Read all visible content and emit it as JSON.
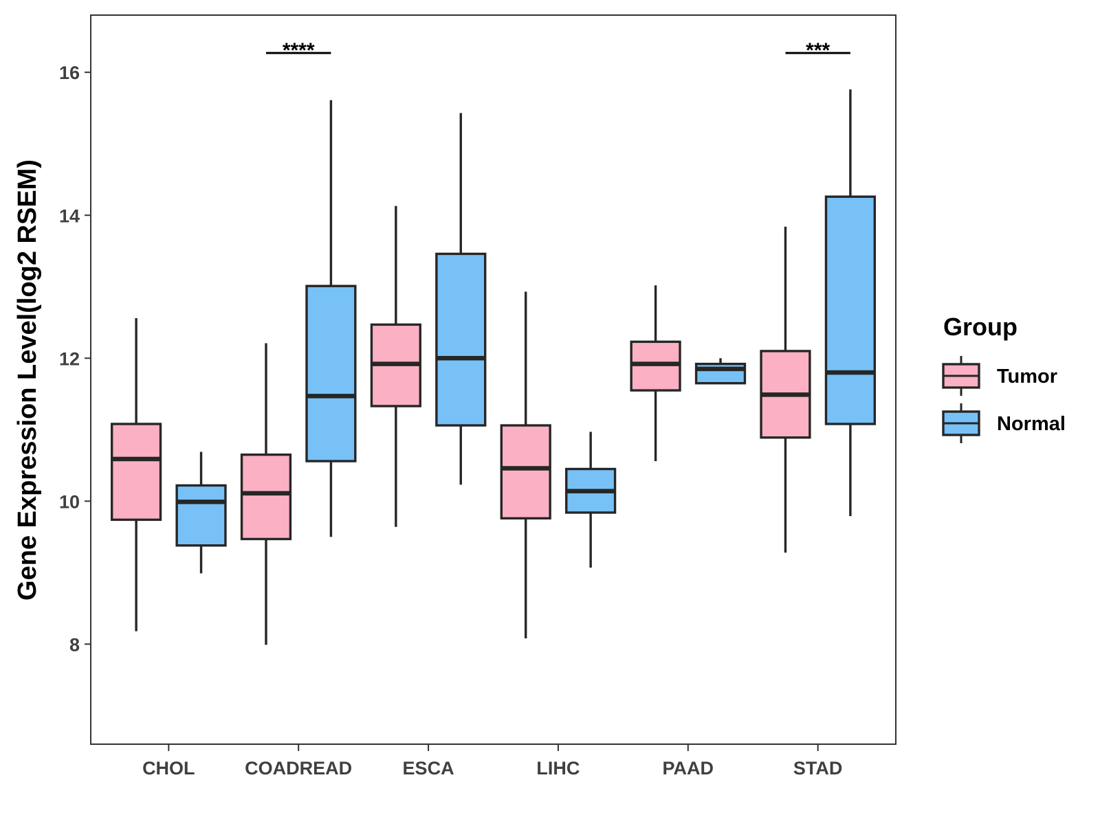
{
  "chart_data": {
    "type": "boxplot",
    "title": "",
    "xlabel": "",
    "ylabel": "Gene Expression Level(log2 RSEM)",
    "ylim": [
      6.6,
      16.8
    ],
    "yticks": [
      8,
      10,
      12,
      14,
      16
    ],
    "ytick_labels": [
      "8",
      "10",
      "12",
      "14",
      "16"
    ],
    "grid": false,
    "legend_position": "right",
    "legend_title": "Group",
    "categories": [
      "CHOL",
      "COADREAD",
      "ESCA",
      "LIHC",
      "PAAD",
      "STAD"
    ],
    "series": [
      {
        "name": "Tumor",
        "color": "#FBB1C3",
        "boxes": [
          {
            "whisker_low": 8.18,
            "q1": 9.74,
            "median": 10.59,
            "q3": 11.08,
            "whisker_high": 12.56
          },
          {
            "whisker_low": 7.99,
            "q1": 9.47,
            "median": 10.11,
            "q3": 10.65,
            "whisker_high": 12.21
          },
          {
            "whisker_low": 9.64,
            "q1": 11.33,
            "median": 11.92,
            "q3": 12.47,
            "whisker_high": 14.13
          },
          {
            "whisker_low": 8.08,
            "q1": 9.76,
            "median": 10.46,
            "q3": 11.06,
            "whisker_high": 12.93
          },
          {
            "whisker_low": 10.56,
            "q1": 11.55,
            "median": 11.92,
            "q3": 12.23,
            "whisker_high": 13.02
          },
          {
            "whisker_low": 9.28,
            "q1": 10.89,
            "median": 11.49,
            "q3": 12.1,
            "whisker_high": 13.84
          }
        ]
      },
      {
        "name": "Normal",
        "color": "#77C1F7",
        "boxes": [
          {
            "whisker_low": 8.99,
            "q1": 9.38,
            "median": 9.99,
            "q3": 10.22,
            "whisker_high": 10.69
          },
          {
            "whisker_low": 9.5,
            "q1": 10.56,
            "median": 11.47,
            "q3": 13.01,
            "whisker_high": 15.61
          },
          {
            "whisker_low": 10.23,
            "q1": 11.06,
            "median": 12.0,
            "q3": 13.46,
            "whisker_high": 15.43
          },
          {
            "whisker_low": 9.07,
            "q1": 9.84,
            "median": 10.14,
            "q3": 10.45,
            "whisker_high": 10.97
          },
          {
            "whisker_low": 11.65,
            "q1": 11.65,
            "median": 11.85,
            "q3": 11.92,
            "whisker_high": 12.0
          },
          {
            "whisker_low": 9.79,
            "q1": 11.08,
            "median": 11.8,
            "q3": 14.26,
            "whisker_high": 15.76
          }
        ]
      }
    ],
    "annotations": [
      {
        "category": "COADREAD",
        "label": "****",
        "y": 16.27
      },
      {
        "category": "STAD",
        "label": "***",
        "y": 16.27
      }
    ]
  }
}
